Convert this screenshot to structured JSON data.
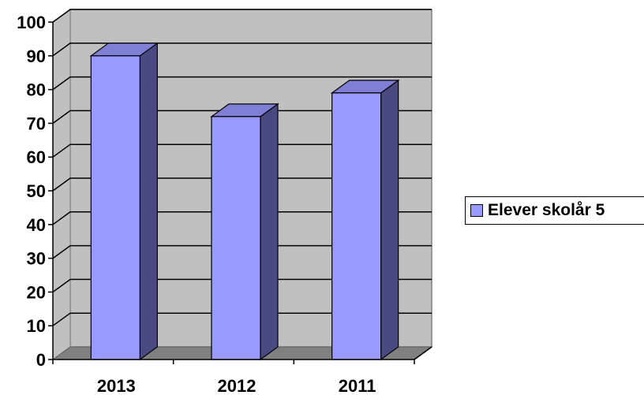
{
  "chart_data": {
    "type": "bar",
    "style": "3d-column",
    "categories": [
      "2013",
      "2012",
      "2011"
    ],
    "series": [
      {
        "name": "Elever skolår 5",
        "values": [
          90,
          72,
          79
        ]
      }
    ],
    "ylim": [
      0,
      100
    ],
    "yticks": [
      0,
      10,
      20,
      30,
      40,
      50,
      60,
      70,
      80,
      90,
      100
    ],
    "grid": true,
    "legend_position": "right",
    "colors": {
      "bar_front": "#9999ff",
      "bar_side": "#4a4a82",
      "bar_top": "#7f7fd6",
      "wall": "#c0c0c0",
      "floor": "#808080",
      "gridline": "#000000"
    }
  }
}
